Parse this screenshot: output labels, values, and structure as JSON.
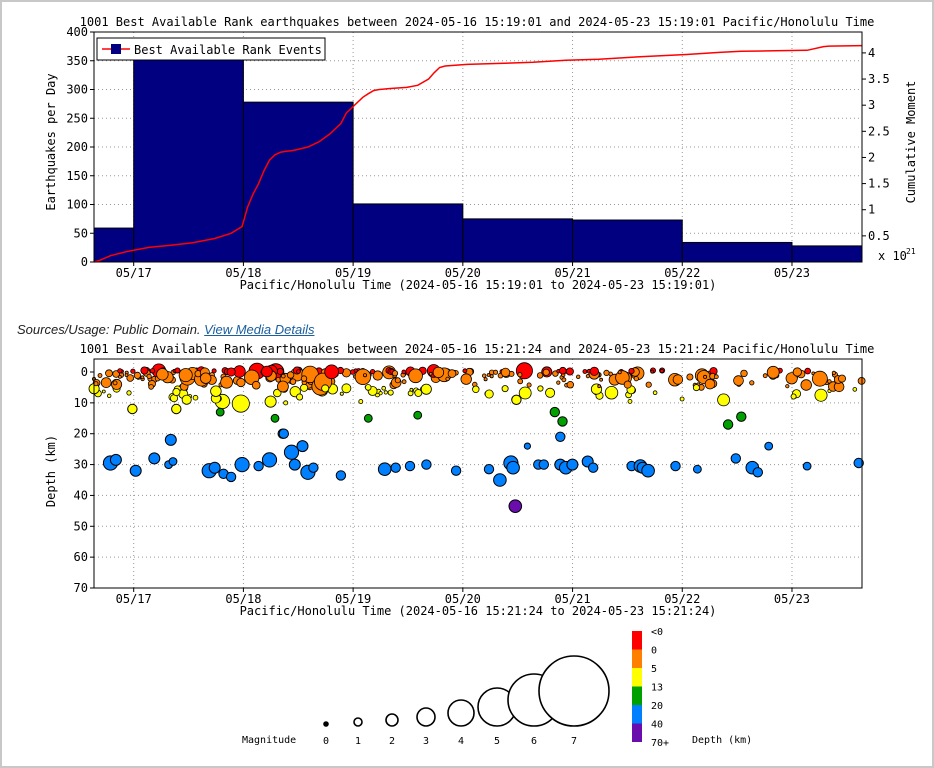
{
  "usage": {
    "sources_label": "Sources/Usage: Public Domain.",
    "media_link": "View Media Details"
  },
  "chart_data": [
    {
      "type": "bar",
      "title": "1001 Best Available Rank earthquakes between 2024-05-16 15:19:01 and 2024-05-23 15:19:01 Pacific/Honolulu Time",
      "xlabel": "Pacific/Honolulu Time (2024-05-16 15:19:01 to 2024-05-23 15:19:01)",
      "ylabel": "Earthquakes per Day",
      "y2label": "Cumulative Moment",
      "y2_multiplier": "x 10",
      "y2_exponent": "21",
      "legend": "Best Available Rank Events",
      "legend_position": "top-left",
      "grid": true,
      "xlim": [
        "05/16 15:19",
        "05/23 15:19"
      ],
      "ylim": [
        0,
        400
      ],
      "y2lim": [
        0,
        4.4
      ],
      "x_ticks": [
        "05/17",
        "05/18",
        "05/19",
        "05/20",
        "05/21",
        "05/22",
        "05/23"
      ],
      "y_ticks": [
        0,
        50,
        100,
        150,
        200,
        250,
        300,
        350,
        400
      ],
      "y2_ticks": [
        "0.5",
        "1",
        "1.5",
        "2",
        "2.5",
        "3",
        "3.5",
        "4"
      ],
      "bar_color": "#000080",
      "line_color": "#ff0000",
      "bars": [
        {
          "start": "05/16 15:19",
          "end": "05/17 00:00",
          "value": 59
        },
        {
          "start": "05/17 00:00",
          "end": "05/18 00:00",
          "value": 352
        },
        {
          "start": "05/18 00:00",
          "end": "05/19 00:00",
          "value": 278
        },
        {
          "start": "05/19 00:00",
          "end": "05/20 00:00",
          "value": 101
        },
        {
          "start": "05/20 00:00",
          "end": "05/21 00:00",
          "value": 75
        },
        {
          "start": "05/21 00:00",
          "end": "05/22 00:00",
          "value": 73
        },
        {
          "start": "05/22 00:00",
          "end": "05/23 00:00",
          "value": 34
        },
        {
          "start": "05/23 00:00",
          "end": "05/23 15:19",
          "value": 28
        }
      ],
      "cumulative_moment": {
        "x_day_offset": [
          0,
          0.05,
          0.15,
          0.3,
          0.5,
          0.7,
          0.9,
          1.1,
          1.25,
          1.35,
          1.4,
          1.45,
          1.5,
          1.55,
          1.6,
          1.65,
          1.7,
          1.75,
          1.8,
          1.85,
          1.95,
          2.05,
          2.15,
          2.25,
          2.3,
          2.35,
          2.4,
          2.45,
          2.5,
          2.55,
          2.6,
          2.7,
          2.85,
          2.95,
          3.05,
          3.1,
          3.15,
          3.2,
          3.4,
          3.7,
          4.0,
          4.3,
          4.6,
          5.0,
          5.4,
          5.7,
          5.9,
          6.2,
          6.5,
          6.65,
          6.7,
          7.0
        ],
        "values": [
          0.0,
          0.03,
          0.12,
          0.2,
          0.28,
          0.32,
          0.37,
          0.45,
          0.55,
          0.68,
          1.05,
          1.3,
          1.5,
          1.75,
          1.95,
          2.05,
          2.1,
          2.12,
          2.13,
          2.15,
          2.2,
          2.3,
          2.45,
          2.65,
          2.85,
          2.95,
          3.05,
          3.15,
          3.22,
          3.28,
          3.3,
          3.32,
          3.34,
          3.38,
          3.5,
          3.62,
          3.72,
          3.75,
          3.78,
          3.8,
          3.82,
          3.86,
          3.88,
          3.93,
          3.97,
          4.01,
          4.03,
          4.04,
          4.05,
          4.12,
          4.13,
          4.14
        ]
      }
    },
    {
      "type": "scatter",
      "title": "1001 Best Available Rank earthquakes between 2024-05-16 15:21:24 and 2024-05-23 15:21:24 Pacific/Honolulu Time",
      "xlabel": "Pacific/Honolulu Time (2024-05-16 15:21:24 to 2024-05-23 15:21:24)",
      "ylabel": "Depth (km)",
      "grid": true,
      "y_inverted": true,
      "xlim": [
        "05/16 15:21",
        "05/23 15:21"
      ],
      "ylim": [
        0,
        70
      ],
      "x_ticks": [
        "05/17",
        "05/18",
        "05/19",
        "05/20",
        "05/21",
        "05/22",
        "05/23"
      ],
      "y_ticks": [
        0,
        10,
        20,
        30,
        40,
        50,
        60,
        70
      ],
      "depth_colors": [
        "#ff0000",
        "#ff7f00",
        "#ffff00",
        "#00a000",
        "#0080ff",
        "#6a0dad"
      ],
      "points": [
        {
          "x": 0.15,
          "depth": 29.5,
          "mag": 3.5
        },
        {
          "x": 0.2,
          "depth": 28.5,
          "mag": 2.5
        },
        {
          "x": 0.38,
          "depth": 32,
          "mag": 2.5
        },
        {
          "x": 0.55,
          "depth": 28,
          "mag": 2.5
        },
        {
          "x": 0.68,
          "depth": 30,
          "mag": 1.5
        },
        {
          "x": 0.72,
          "depth": 29,
          "mag": 1.5
        },
        {
          "x": 0.7,
          "depth": 22,
          "mag": 2.5
        },
        {
          "x": 1.05,
          "depth": 32,
          "mag": 3.5
        },
        {
          "x": 1.1,
          "depth": 31,
          "mag": 2.5
        },
        {
          "x": 1.18,
          "depth": 33,
          "mag": 2
        },
        {
          "x": 1.25,
          "depth": 34,
          "mag": 2
        },
        {
          "x": 1.35,
          "depth": 30,
          "mag": 3.5
        },
        {
          "x": 1.5,
          "depth": 30.5,
          "mag": 2
        },
        {
          "x": 1.6,
          "depth": 28.5,
          "mag": 3.5
        },
        {
          "x": 1.72,
          "depth": 20,
          "mag": 2
        },
        {
          "x": 1.8,
          "depth": 26,
          "mag": 3.5
        },
        {
          "x": 1.83,
          "depth": 30,
          "mag": 2.5
        },
        {
          "x": 1.9,
          "depth": 24,
          "mag": 2.5
        },
        {
          "x": 1.95,
          "depth": 32.5,
          "mag": 3.5
        },
        {
          "x": 2.0,
          "depth": 31,
          "mag": 2
        },
        {
          "x": 2.25,
          "depth": 33.5,
          "mag": 2
        },
        {
          "x": 2.65,
          "depth": 31.5,
          "mag": 3
        },
        {
          "x": 2.75,
          "depth": 31,
          "mag": 2
        },
        {
          "x": 2.88,
          "depth": 30.5,
          "mag": 2
        },
        {
          "x": 3.03,
          "depth": 30,
          "mag": 2
        },
        {
          "x": 3.3,
          "depth": 32,
          "mag": 2
        },
        {
          "x": 3.6,
          "depth": 31.5,
          "mag": 2
        },
        {
          "x": 3.7,
          "depth": 35,
          "mag": 3
        },
        {
          "x": 3.8,
          "depth": 29.5,
          "mag": 3.5
        },
        {
          "x": 3.82,
          "depth": 31,
          "mag": 3
        },
        {
          "x": 3.84,
          "depth": 43.5,
          "mag": 3
        },
        {
          "x": 4.05,
          "depth": 30,
          "mag": 2
        },
        {
          "x": 4.1,
          "depth": 30,
          "mag": 2
        },
        {
          "x": 4.25,
          "depth": 30,
          "mag": 2.5
        },
        {
          "x": 4.3,
          "depth": 31,
          "mag": 3
        },
        {
          "x": 4.36,
          "depth": 30,
          "mag": 2.5
        },
        {
          "x": 4.5,
          "depth": 29,
          "mag": 2.5
        },
        {
          "x": 4.55,
          "depth": 31,
          "mag": 2
        },
        {
          "x": 4.9,
          "depth": 30.5,
          "mag": 2
        },
        {
          "x": 4.98,
          "depth": 30.5,
          "mag": 3
        },
        {
          "x": 5.0,
          "depth": 31,
          "mag": 2.5
        },
        {
          "x": 5.05,
          "depth": 32,
          "mag": 3
        },
        {
          "x": 5.3,
          "depth": 30.5,
          "mag": 2
        },
        {
          "x": 5.5,
          "depth": 31.5,
          "mag": 1.5
        },
        {
          "x": 5.85,
          "depth": 28,
          "mag": 2
        },
        {
          "x": 6.0,
          "depth": 31,
          "mag": 3
        },
        {
          "x": 6.05,
          "depth": 32.5,
          "mag": 2
        },
        {
          "x": 6.15,
          "depth": 24,
          "mag": 1.5
        },
        {
          "x": 6.5,
          "depth": 30.5,
          "mag": 1.5
        },
        {
          "x": 6.97,
          "depth": 29.5,
          "mag": 2
        },
        {
          "x": 4.25,
          "depth": 21,
          "mag": 2
        },
        {
          "x": 4.27,
          "depth": 16,
          "mag": 2
        },
        {
          "x": 3.95,
          "depth": 24,
          "mag": 1
        },
        {
          "x": 1.65,
          "depth": 15,
          "mag": 1.5
        },
        {
          "x": 1.73,
          "depth": 20,
          "mag": 2
        },
        {
          "x": 5.78,
          "depth": 17,
          "mag": 2
        },
        {
          "x": 5.9,
          "depth": 14.5,
          "mag": 2
        },
        {
          "x": 4.2,
          "depth": 13,
          "mag": 2
        },
        {
          "x": 3.85,
          "depth": 9,
          "mag": 2
        },
        {
          "x": 0.75,
          "depth": 12,
          "mag": 2
        },
        {
          "x": 0.35,
          "depth": 12,
          "mag": 2
        },
        {
          "x": 1.15,
          "depth": 13,
          "mag": 1.5
        },
        {
          "x": 2.5,
          "depth": 15,
          "mag": 1.5
        },
        {
          "x": 2.95,
          "depth": 14,
          "mag": 1.5
        }
      ],
      "shallow_cluster_note_hidden": true
    }
  ],
  "legend_data": {
    "magnitude_label": "Magnitude",
    "magnitudes": [
      "0",
      "1",
      "2",
      "3",
      "4",
      "5",
      "6",
      "7"
    ],
    "depth_label": "Depth (km)",
    "depth_classes": [
      "<0",
      "0",
      "5",
      "13",
      "20",
      "40",
      "70+"
    ],
    "depth_class_colors": [
      "#ff0000",
      "#ff7f00",
      "#ffff00",
      "#00a000",
      "#0080ff",
      "#6a0dad"
    ]
  }
}
